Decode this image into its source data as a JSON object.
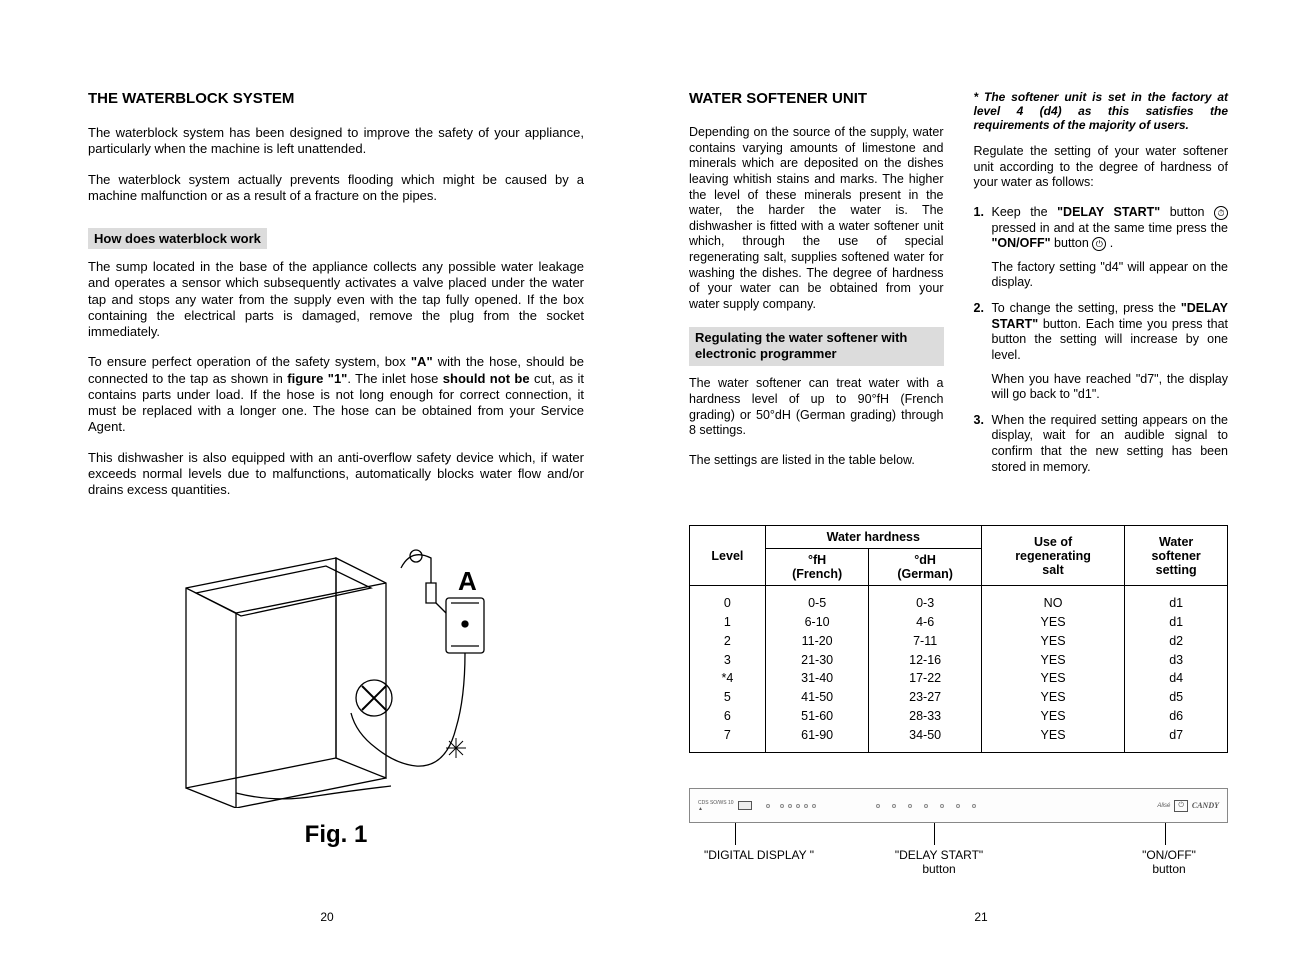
{
  "left": {
    "heading": "THE WATERBLOCK SYSTEM",
    "p1": "The waterblock system has been designed to improve the safety of your appliance, particularly when the machine is left unattended.",
    "p2": "The waterblock system actually prevents flooding which might be caused by a machine malfunction or as a result of a fracture on the pipes.",
    "sub1": "How does waterblock work",
    "p3": "The sump located in the base of the appliance collects any possible water leakage and operates a sensor which subsequently activates a valve placed under the water tap and stops any water from the supply even with the tap fully opened. If the box containing the electrical parts is damaged, remove the plug from the socket immediately.",
    "p4_a": "To ensure perfect operation of the safety system, box ",
    "p4_bold1": "\"A\"",
    "p4_b": " with the hose, should be connected to the tap as shown in ",
    "p4_bold2": "figure \"1\"",
    "p4_c": ". The inlet hose ",
    "p4_bold3": "should not be",
    "p4_d": " cut, as it contains parts under load. If the hose is not long enough for correct connection, it must be replaced with a longer one. The hose can be obtained from your Service Agent.",
    "p5": "This dishwasher is also equipped with an anti-overflow safety device which, if water exceeds normal levels due to malfunctions, automatically blocks water flow and/or drains excess quantities.",
    "fig_label": "A",
    "fig_caption": "Fig. 1",
    "page_num": "20"
  },
  "right": {
    "heading": "WATER SOFTENER UNIT",
    "p1": "Depending on the source of the supply, water contains varying amounts of limestone and minerals which are deposited on the dishes leaving whitish stains and marks.",
    "p2": "The higher the level of these minerals present in the water, the harder the water is.",
    "p3": "The dishwasher is fitted with a water softener unit which, through the use of special regenerating salt, supplies softened water for washing the dishes.",
    "p4": "The degree of hardness of your water can be obtained from your water supply company.",
    "sub1": "Regulating the water softener with electronic programmer",
    "p5": "The water softener can treat water with a hardness level of up to 90°fH (French grading) or 50°dH (German grading) through 8 settings.",
    "p6": "The settings are listed in the table below.",
    "note": "*  The softener unit is set in the factory at level 4 (d4) as this satisfies the requirements of the majority of users.",
    "reg": "Regulate the setting of your water softener unit according to the degree of hardness of your water as follows:",
    "step1_a": "Keep the ",
    "step1_b1": "\"DELAY START\"",
    "step1_b": " button ",
    "step1_c": " pressed in and at the same time press the ",
    "step1_b2": "\"ON/OFF\"",
    "step1_d": " button ",
    "step1_e": " .",
    "step1_detail": "The factory setting \"d4\" will appear on the display.",
    "step2_a": "To change the setting, press the ",
    "step2_b1": "\"DELAY START\"",
    "step2_b": " button. Each time you press that button the setting will increase by one level.",
    "step2_detail": "When you have reached \"d7\", the display will go back to \"d1\".",
    "step3": "When the required setting appears on the display, wait for an audible signal to confirm that the new setting has been stored in memory.",
    "table": {
      "h_level": "Level",
      "h_hardness": "Water hardness",
      "h_fh": "°fH\n(French)",
      "h_dh": "°dH\n(German)",
      "h_salt": "Use of\nregenerating\nsalt",
      "h_setting": "Water\nsoftener\nsetting",
      "rows": [
        [
          "0",
          "0-5",
          "0-3",
          "NO",
          "d1"
        ],
        [
          "1",
          "6-10",
          "4-6",
          "YES",
          "d1"
        ],
        [
          "2",
          "11-20",
          "7-11",
          "YES",
          "d2"
        ],
        [
          "3",
          "21-30",
          "12-16",
          "YES",
          "d3"
        ],
        [
          "*4",
          "31-40",
          "17-22",
          "YES",
          "d4"
        ],
        [
          "5",
          "41-50",
          "23-27",
          "YES",
          "d5"
        ],
        [
          "6",
          "51-60",
          "28-33",
          "YES",
          "d6"
        ],
        [
          "7",
          "61-90",
          "34-50",
          "YES",
          "d7"
        ]
      ]
    },
    "panel_lbl1": "\"DIGITAL DISPLAY \"",
    "panel_lbl2": "\"DELAY START\"\nbutton",
    "panel_lbl3": "\"ON/OFF\"\nbutton",
    "brand": "CANDY",
    "page_num": "21"
  }
}
